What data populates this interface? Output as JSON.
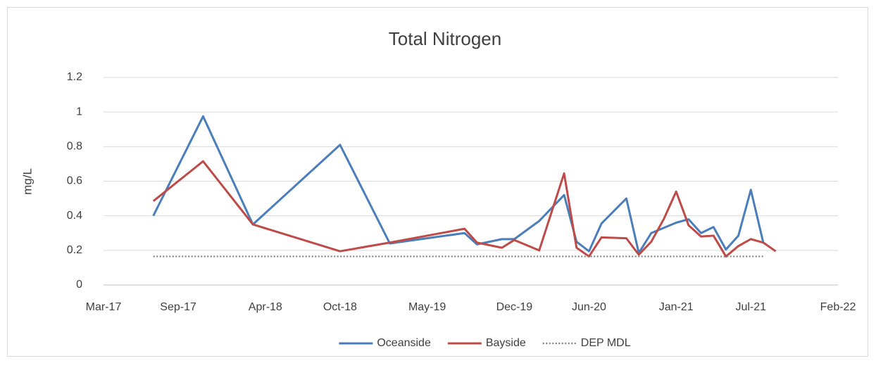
{
  "chart_data": {
    "type": "line",
    "title": "Total Nitrogen",
    "ylabel": "mg/L",
    "xlim": [
      "2017-03",
      "2022-02"
    ],
    "xticks": [
      {
        "value": "2017-03",
        "label": "Mar-17"
      },
      {
        "value": "2017-09",
        "label": "Sep-17"
      },
      {
        "value": "2018-04",
        "label": "Apr-18"
      },
      {
        "value": "2018-10",
        "label": "Oct-18"
      },
      {
        "value": "2019-05",
        "label": "May-19"
      },
      {
        "value": "2019-12",
        "label": "Dec-19"
      },
      {
        "value": "2020-06",
        "label": "Jun-20"
      },
      {
        "value": "2021-01",
        "label": "Jan-21"
      },
      {
        "value": "2021-07",
        "label": "Jul-21"
      },
      {
        "value": "2022-02",
        "label": "Feb-22"
      }
    ],
    "ylim": [
      0,
      1.2
    ],
    "yticks": [
      0,
      0.2,
      0.4,
      0.6,
      0.8,
      1,
      1.2
    ],
    "grid": true,
    "legend": "bottom",
    "series": [
      {
        "name": "Oceanside",
        "color": "#4a7ebb",
        "style": "solid",
        "x": [
          "2017-07",
          "2017-11",
          "2018-03",
          "2018-10",
          "2019-02",
          "2019-08",
          "2019-09",
          "2019-11",
          "2019-12",
          "2020-02",
          "2020-04",
          "2020-05",
          "2020-06",
          "2020-07",
          "2020-09",
          "2020-10",
          "2020-11",
          "2021-01",
          "2021-02",
          "2021-03",
          "2021-04",
          "2021-05",
          "2021-06",
          "2021-07",
          "2021-08"
        ],
        "values": [
          0.4,
          0.975,
          0.35,
          0.81,
          0.24,
          0.3,
          0.235,
          0.265,
          0.265,
          0.37,
          0.52,
          0.25,
          0.195,
          0.355,
          0.5,
          0.185,
          0.3,
          0.36,
          0.38,
          0.3,
          0.335,
          0.205,
          0.285,
          0.55,
          0.245
        ]
      },
      {
        "name": "Bayside",
        "color": "#be4b48",
        "style": "solid",
        "x": [
          "2017-07",
          "2017-11",
          "2018-03",
          "2018-10",
          "2019-02",
          "2019-08",
          "2019-09",
          "2019-11",
          "2019-12",
          "2020-02",
          "2020-04",
          "2020-05",
          "2020-06",
          "2020-07",
          "2020-09",
          "2020-10",
          "2020-11",
          "2020-12",
          "2021-01",
          "2021-02",
          "2021-03",
          "2021-04",
          "2021-05",
          "2021-06",
          "2021-07",
          "2021-08",
          "2021-09"
        ],
        "values": [
          0.485,
          0.715,
          0.35,
          0.195,
          0.245,
          0.325,
          0.245,
          0.215,
          0.26,
          0.2,
          0.645,
          0.215,
          0.165,
          0.275,
          0.27,
          0.175,
          0.25,
          0.38,
          0.54,
          0.345,
          0.28,
          0.285,
          0.165,
          0.225,
          0.265,
          0.245,
          0.195
        ]
      },
      {
        "name": "DEP MDL",
        "color": "#7f7f7f",
        "style": "dotted",
        "x": [
          "2017-07",
          "2021-08"
        ],
        "values": [
          0.165,
          0.165
        ]
      }
    ]
  }
}
